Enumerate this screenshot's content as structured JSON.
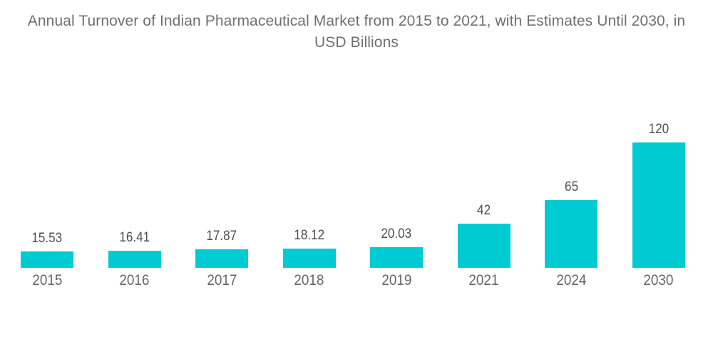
{
  "title": "Annual Turnover of Indian Pharmaceutical Market from 2015 to 2021, with Estimates Until 2030, in USD Billions",
  "colors": {
    "bar": "#00CBD2",
    "title_text": "#707070",
    "value_label_text": "#4E4E4E",
    "year_label_text": "#666666",
    "background": "#FFFFFF"
  },
  "chart_data": {
    "type": "bar",
    "title": "Annual Turnover of Indian Pharmaceutical Market from 2015 to 2021, with Estimates Until 2030, in USD Billions",
    "categories": [
      "2015",
      "2016",
      "2017",
      "2018",
      "2019",
      "2021",
      "2024",
      "2030"
    ],
    "values": [
      15.53,
      16.41,
      17.87,
      18.12,
      20.03,
      42,
      65,
      120
    ],
    "value_labels": [
      "15.53",
      "16.41",
      "17.87",
      "18.12",
      "20.03",
      "42",
      "65",
      "120"
    ],
    "xlabel": "",
    "ylabel": "",
    "unit": "USD Billions",
    "ylim": [
      0,
      130
    ],
    "grid": false,
    "axes_visible": false,
    "legend": "none",
    "data_labels_position": "above bars",
    "bar_color": "#00CBD2"
  }
}
